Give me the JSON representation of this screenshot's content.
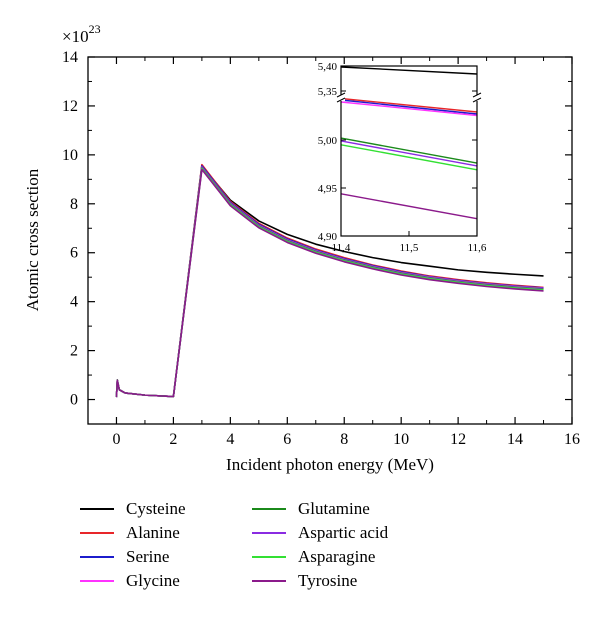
{
  "chart_data": {
    "type": "line",
    "title": "",
    "xlabel": "Incident photon energy (MeV)",
    "ylabel": "Atomic cross section",
    "y_multiplier": "×10",
    "y_multiplier_exp": "23",
    "xlim": [
      -1,
      16
    ],
    "ylim": [
      -1,
      14
    ],
    "xticks": [
      0,
      2,
      4,
      6,
      8,
      10,
      12,
      14,
      16
    ],
    "yticks": [
      0,
      2,
      4,
      6,
      8,
      10,
      12,
      14
    ],
    "grid": false,
    "legend_position": "bottom",
    "x": [
      0,
      0.03,
      0.1,
      0.3,
      1,
      2,
      3,
      4,
      5,
      6,
      7,
      8,
      9,
      10,
      11,
      12,
      13,
      14,
      15
    ],
    "series": [
      {
        "name": "Cysteine",
        "color": "#000000",
        "values": [
          0.1,
          0.8,
          0.4,
          0.27,
          0.18,
          0.12,
          9.55,
          8.15,
          7.3,
          6.75,
          6.35,
          6.05,
          5.8,
          5.6,
          5.45,
          5.3,
          5.2,
          5.12,
          5.05
        ]
      },
      {
        "name": "Alanine",
        "color": "#e8262a",
        "values": [
          0.1,
          0.78,
          0.4,
          0.27,
          0.18,
          0.12,
          9.6,
          8.1,
          7.2,
          6.6,
          6.15,
          5.8,
          5.5,
          5.25,
          5.05,
          4.9,
          4.77,
          4.67,
          4.58
        ]
      },
      {
        "name": "Serine",
        "color": "#1c1ccc",
        "values": [
          0.1,
          0.78,
          0.4,
          0.27,
          0.18,
          0.12,
          9.55,
          8.06,
          7.16,
          6.56,
          6.11,
          5.76,
          5.47,
          5.22,
          5.02,
          4.87,
          4.74,
          4.64,
          4.56
        ]
      },
      {
        "name": "Glycine",
        "color": "#ff33ff",
        "values": [
          0.1,
          0.78,
          0.4,
          0.27,
          0.18,
          0.12,
          9.5,
          8.02,
          7.12,
          6.52,
          6.08,
          5.73,
          5.44,
          5.19,
          5.0,
          4.85,
          4.72,
          4.62,
          4.54
        ]
      },
      {
        "name": "Glutamine",
        "color": "#1b8a1b",
        "values": [
          0.1,
          0.78,
          0.4,
          0.27,
          0.18,
          0.12,
          9.48,
          8.0,
          7.1,
          6.5,
          6.06,
          5.71,
          5.42,
          5.17,
          4.98,
          4.83,
          4.7,
          4.6,
          4.52
        ]
      },
      {
        "name": "Aspartic acid",
        "color": "#8a2be2",
        "values": [
          0.1,
          0.78,
          0.4,
          0.27,
          0.18,
          0.12,
          9.46,
          7.98,
          7.08,
          6.48,
          6.04,
          5.69,
          5.4,
          5.15,
          4.96,
          4.81,
          4.68,
          4.58,
          4.5
        ]
      },
      {
        "name": "Asparagine",
        "color": "#33e033",
        "values": [
          0.1,
          0.78,
          0.4,
          0.27,
          0.18,
          0.12,
          9.44,
          7.96,
          7.06,
          6.46,
          6.02,
          5.67,
          5.38,
          5.13,
          4.94,
          4.79,
          4.66,
          4.56,
          4.48
        ]
      },
      {
        "name": "Tyrosine",
        "color": "#8b1a8b",
        "values": [
          0.1,
          0.78,
          0.4,
          0.27,
          0.18,
          0.12,
          9.4,
          7.92,
          7.02,
          6.42,
          5.98,
          5.63,
          5.34,
          5.09,
          4.9,
          4.75,
          4.62,
          4.52,
          4.44
        ]
      }
    ],
    "inset": {
      "xlim": [
        11.4,
        11.6
      ],
      "ylim": [
        4.9,
        5.4
      ],
      "xticks": [
        "11,4",
        "11,5",
        "11,6"
      ],
      "yticks": [
        "4,90",
        "4,95",
        "5,00",
        "5,35",
        "5,40"
      ],
      "x": [
        11.4,
        11.6
      ],
      "series_values": [
        [
          5.398,
          5.384
        ],
        [
          5.335,
          5.308
        ],
        [
          5.332,
          5.304
        ],
        [
          5.328,
          5.301
        ],
        [
          5.002,
          4.976
        ],
        [
          4.999,
          4.973
        ],
        [
          4.995,
          4.969
        ],
        [
          4.944,
          4.918
        ]
      ]
    }
  }
}
